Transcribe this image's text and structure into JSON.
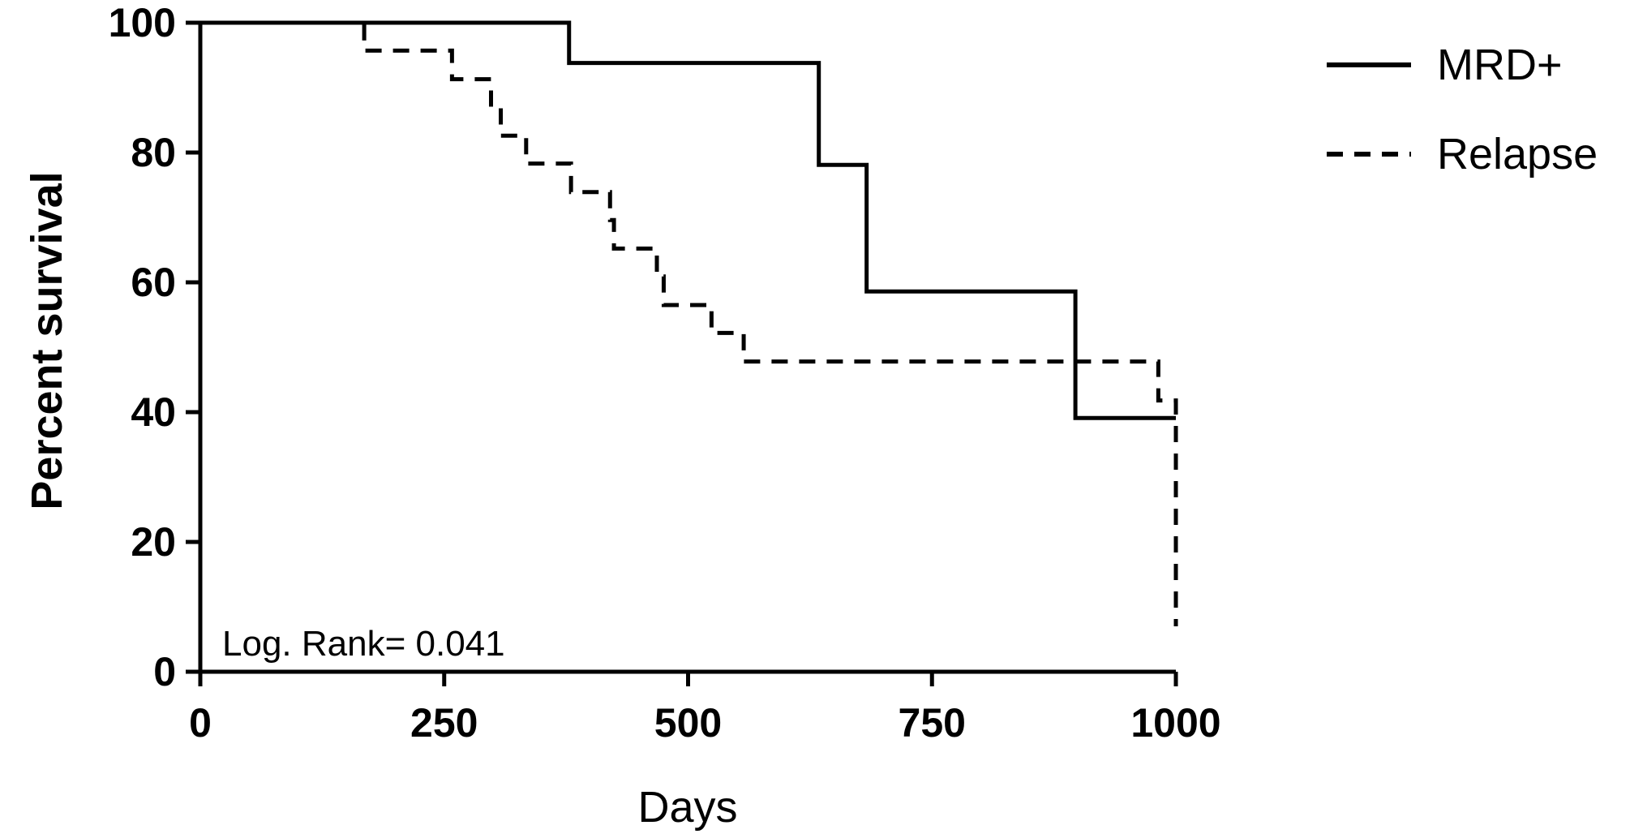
{
  "chart_data": {
    "type": "line",
    "subtype": "kaplan-meier step",
    "title": "",
    "xlabel": "Days",
    "ylabel": "Percent survival",
    "xlim": [
      0,
      1000
    ],
    "ylim": [
      0,
      100
    ],
    "x_ticks": [
      0,
      250,
      500,
      750,
      1000
    ],
    "y_ticks": [
      0,
      20,
      40,
      60,
      80,
      100
    ],
    "grid": false,
    "legend_position": "top-right",
    "annotation": "Log. Rank= 0.041",
    "series": [
      {
        "name": "MRD+",
        "line_style": "solid",
        "color": "#000000",
        "steps": [
          [
            0,
            100
          ],
          [
            378,
            93.8
          ],
          [
            634,
            78.1
          ],
          [
            683,
            58.6
          ],
          [
            897,
            39.1
          ],
          [
            1000,
            39.1
          ]
        ]
      },
      {
        "name": "Relapse",
        "line_style": "dashed",
        "color": "#000000",
        "steps": [
          [
            0,
            100
          ],
          [
            168,
            95.7
          ],
          [
            258,
            91.3
          ],
          [
            298,
            87.0
          ],
          [
            308,
            82.6
          ],
          [
            334,
            78.3
          ],
          [
            380,
            73.9
          ],
          [
            420,
            69.6
          ],
          [
            424,
            65.2
          ],
          [
            468,
            60.9
          ],
          [
            475,
            56.5
          ],
          [
            524,
            52.2
          ],
          [
            557,
            47.8
          ],
          [
            982,
            41.8
          ],
          [
            1000,
            7.0
          ]
        ]
      }
    ]
  }
}
